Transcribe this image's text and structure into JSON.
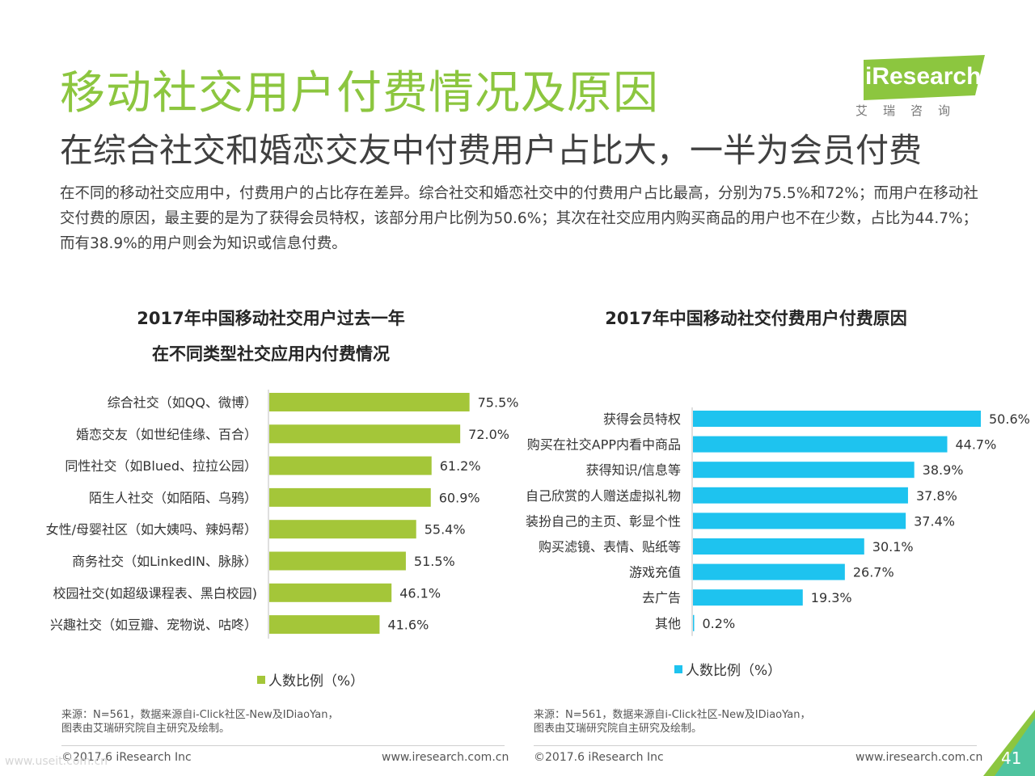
{
  "header": {
    "title": "移动社交用户付费情况及原因",
    "subtitle": "在综合社交和婚恋交友中付费用户占比大，一半为会员付费",
    "body": "在不同的移动社交应用中，付费用户的占比存在差异。综合社交和婚恋社交中的付费用户占比最高，分别为75.5%和72%；而用户在移动社交付费的原因，最主要的是为了获得会员特权，该部分用户比例为50.6%；其次在社交应用内购买商品的用户也不在少数，占比为44.7%；而有38.9%的用户则会为知识或信息付费。"
  },
  "logo": {
    "text": "iResearch",
    "sub": "艾瑞咨询",
    "color": "#8cc63f"
  },
  "chart_data": [
    {
      "type": "bar",
      "orientation": "horizontal",
      "title_lines": [
        "2017年中国移动社交用户过去一年",
        "在不同类型社交应用内付费情况"
      ],
      "categories": [
        "综合社交（如QQ、微博）",
        "婚恋交友（如世纪佳缘、百合）",
        "同性社交（如Blued、拉拉公园）",
        "陌生人社交（如陌陌、乌鸦）",
        "女性/母婴社区（如大姨吗、辣妈帮）",
        "商务社交（如LinkedIN、脉脉）",
        "校园社交(如超级课程表、黑白校园)",
        "兴趣社交（如豆瓣、宠物说、咕咚）"
      ],
      "values": [
        75.5,
        72.0,
        61.2,
        60.9,
        55.4,
        51.5,
        46.1,
        41.6
      ],
      "value_labels": [
        "75.5%",
        "72.0%",
        "61.2%",
        "60.9%",
        "55.4%",
        "51.5%",
        "46.1%",
        "41.6%"
      ],
      "series_name": "人数比例（%）",
      "color": "#a4c639",
      "xlim": [
        0,
        100
      ],
      "legend": "bottom"
    },
    {
      "type": "bar",
      "orientation": "horizontal",
      "title": "2017年中国移动社交付费用户付费原因",
      "categories": [
        "获得会员特权",
        "购买在社交APP内看中商品",
        "获得知识/信息等",
        "自己欣赏的人赠送虚拟礼物",
        "装扮自己的主页、彰显个性",
        "购买滤镜、表情、贴纸等",
        "游戏充值",
        "去广告",
        "其他"
      ],
      "values": [
        50.6,
        44.7,
        38.9,
        37.8,
        37.4,
        30.1,
        26.7,
        19.3,
        0.2
      ],
      "value_labels": [
        "50.6%",
        "44.7%",
        "38.9%",
        "37.8%",
        "37.4%",
        "30.1%",
        "26.7%",
        "19.3%",
        "0.2%"
      ],
      "series_name": "人数比例（%）",
      "color": "#1ec3ef",
      "xlim": [
        0,
        50.6
      ],
      "legend": "bottom"
    }
  ],
  "sources": {
    "left_line1": "来源：N=561，数据来源自i-Click社区-New及IDiaoYan，",
    "left_line2": "图表由艾瑞研究院自主研究及绘制。",
    "right_line1": "来源：N=561，数据来源自i-Click社区-New及IDiaoYan，",
    "right_line2": "图表由艾瑞研究院自主研究及绘制。"
  },
  "footer": {
    "copyright": "©2017.6 iResearch Inc",
    "url": "www.iresearch.com.cn",
    "page": "41",
    "watermark": "www.useit.com.cn"
  }
}
